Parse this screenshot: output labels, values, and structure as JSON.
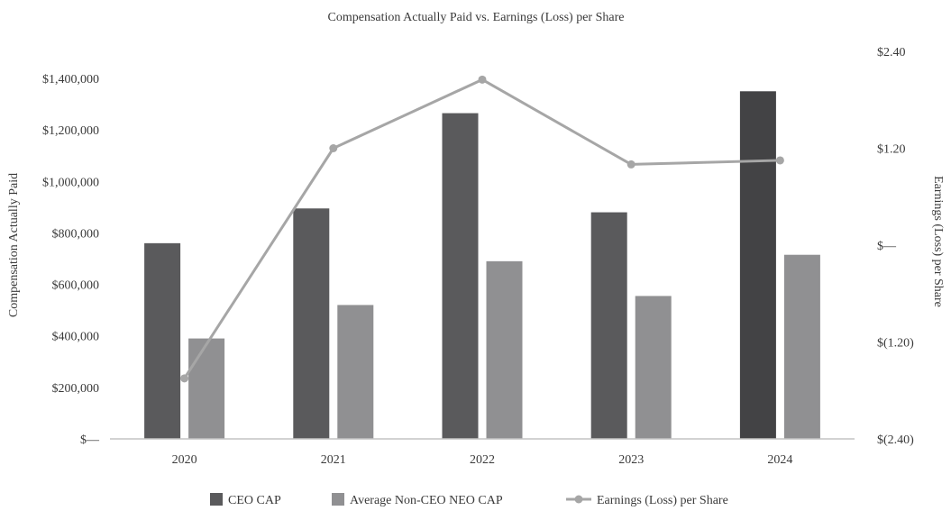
{
  "chart_data": {
    "type": "bar",
    "title": "Compensation Actually Paid vs. Earnings (Loss) per Share",
    "categories": [
      "2020",
      "2021",
      "2022",
      "2023",
      "2024"
    ],
    "ylabel": "Compensation Actually Paid",
    "y2label": "Earnings (Loss) per Share",
    "ylim": [
      0,
      1400000
    ],
    "y2lim": [
      -2.4,
      2.4
    ],
    "yticks": [
      "$—",
      "$200,000",
      "$400,000",
      "$600,000",
      "$800,000",
      "$1,000,000",
      "$1,200,000",
      "$1,400,000"
    ],
    "y2ticks": [
      "$(2.40)",
      "$(1.20)",
      "$—",
      "$1.20",
      "$2.40"
    ],
    "grid": false,
    "legend_position": "bottom",
    "series": [
      {
        "name": "CEO CAP",
        "kind": "bar",
        "color": "#5a5a5c",
        "values": [
          760000,
          895000,
          1265000,
          880000,
          1350000
        ]
      },
      {
        "name": "Average Non-CEO NEO CAP",
        "kind": "bar",
        "color": "#909092",
        "values": [
          390000,
          520000,
          690000,
          555000,
          715000
        ]
      },
      {
        "name": "Earnings (Loss) per Share",
        "kind": "line",
        "axis": "right",
        "color": "#a6a6a6",
        "values": [
          -1.65,
          1.2,
          2.05,
          1.0,
          1.05
        ]
      }
    ]
  }
}
